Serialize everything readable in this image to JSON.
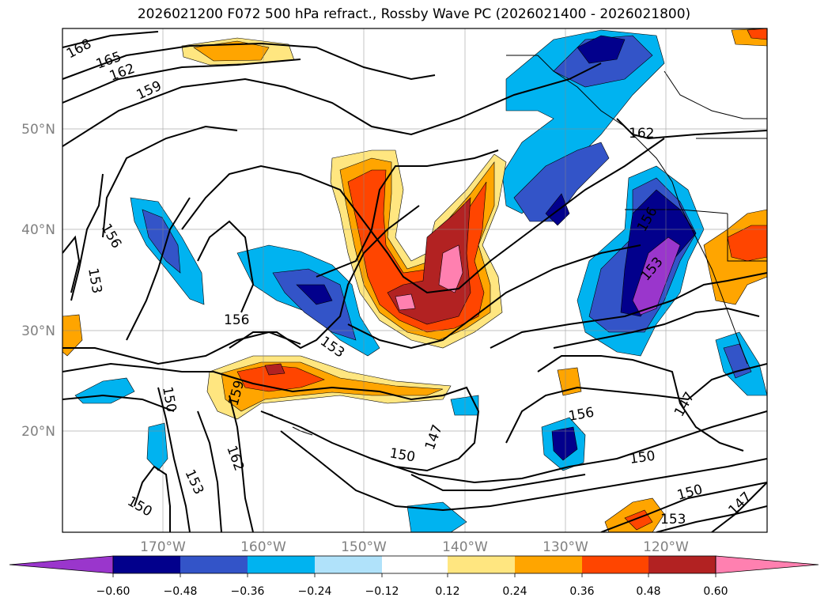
{
  "title": "2026021200 F072 500 hPa refract., Rossby Wave PC (2026021400 - 2026021800)",
  "map": {
    "lon_labels": [
      "170°W",
      "160°W",
      "150°W",
      "140°W",
      "130°W",
      "120°W"
    ],
    "lat_labels": [
      "50°N",
      "40°N",
      "30°N",
      "20°N"
    ],
    "contour_labels": [
      "168",
      "165",
      "162",
      "159",
      "156",
      "153",
      "156",
      "153",
      "150",
      "159",
      "153",
      "162",
      "150",
      "150",
      "147",
      "150",
      "156",
      "147",
      "150",
      "153",
      "147",
      "162",
      "156",
      "153"
    ]
  },
  "colorbar": {
    "tick_labels": [
      "−0.60",
      "−0.48",
      "−0.36",
      "−0.24",
      "−0.12",
      "0.12",
      "0.24",
      "0.36",
      "0.48",
      "0.60"
    ],
    "colors": [
      "#9a36cc",
      "#02008c",
      "#3354c8",
      "#00b3f0",
      "#b0e2fa",
      "#ffffff",
      "#ffe680",
      "#ffa500",
      "#ff4500",
      "#b22222",
      "#ff80b0"
    ]
  }
}
